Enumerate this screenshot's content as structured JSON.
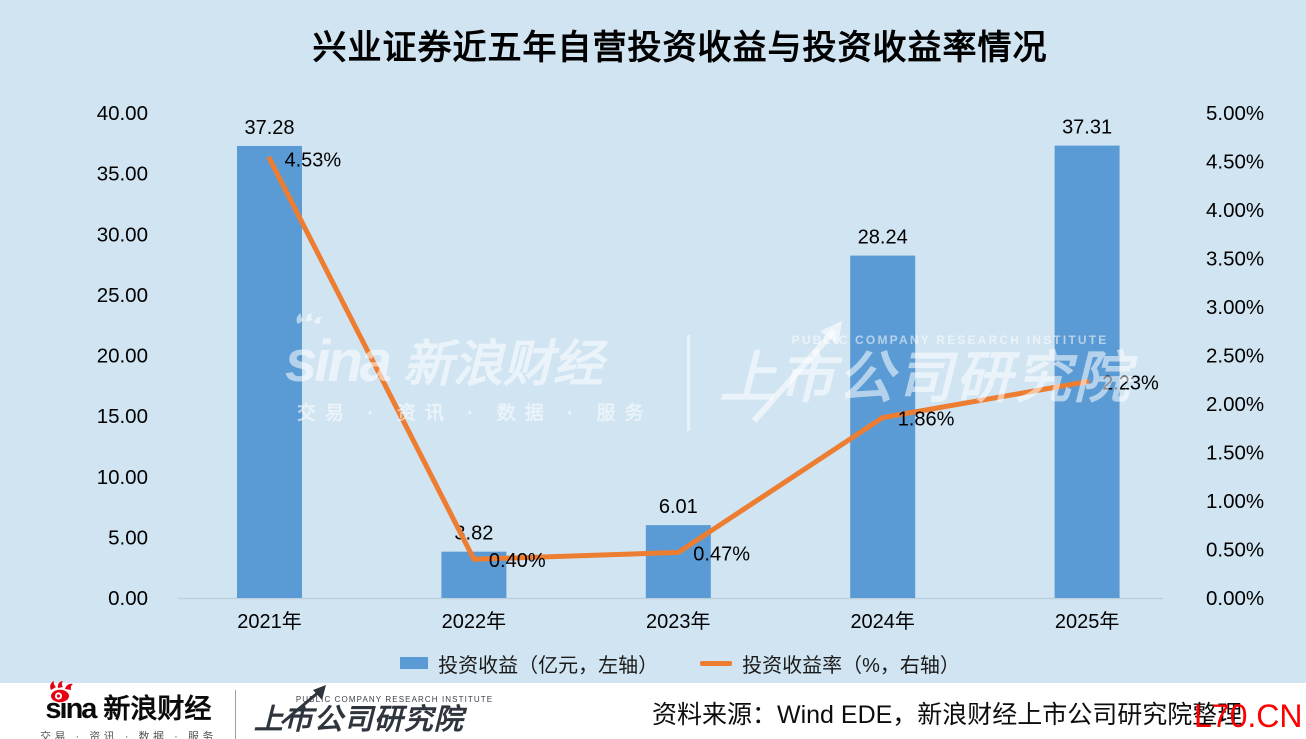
{
  "title": "兴业证券近五年自营投资收益与投资收益率情况",
  "chart_data": {
    "type": "bar",
    "combo": "bar+line",
    "title": "兴业证券近五年自营投资收益与投资收益率情况",
    "categories": [
      "2021年",
      "2022年",
      "2023年",
      "2024年",
      "2025年"
    ],
    "series": [
      {
        "name": "投资收益（亿元，左轴）",
        "type": "bar",
        "axis": "left",
        "color": "#5b9bd5",
        "values": [
          37.28,
          3.82,
          6.01,
          28.24,
          37.31
        ],
        "data_labels": [
          "37.28",
          "3.82",
          "6.01",
          "28.24",
          "37.31"
        ]
      },
      {
        "name": "投资收益率（%，右轴）",
        "type": "line",
        "axis": "right",
        "color": "#ed7d31",
        "values": [
          4.53,
          0.4,
          0.47,
          1.86,
          2.23
        ],
        "data_labels": [
          "4.53%",
          "0.40%",
          "0.47%",
          "1.86%",
          "2.23%"
        ]
      }
    ],
    "left_axis": {
      "min": 0,
      "max": 40,
      "step": 5,
      "tick_labels": [
        "40.00",
        "35.00",
        "30.00",
        "25.00",
        "20.00",
        "15.00",
        "10.00",
        "5.00",
        "0.00"
      ]
    },
    "right_axis": {
      "min": 0,
      "max": 5,
      "step": 0.5,
      "tick_labels": [
        "5.00%",
        "4.50%",
        "4.00%",
        "3.50%",
        "3.00%",
        "2.50%",
        "2.00%",
        "1.50%",
        "1.00%",
        "0.50%",
        "0.00%"
      ]
    },
    "grid": false,
    "legend_position": "bottom"
  },
  "watermark": {
    "sina": "sina",
    "sina_cn": "新浪财经",
    "tagline": "交易 · 资讯 · 数据 · 服务",
    "institute_en": "PUBLIC COMPANY RESEARCH INSTITUTE",
    "institute_cn": "上市公司研究院"
  },
  "footer": {
    "sina": "sina",
    "sina_cn": "新浪财经",
    "tagline": "交易 · 资讯 · 数据 · 服务",
    "institute_en": "PUBLIC COMPANY RESEARCH INSTITUTE",
    "institute_cn": "上市公司研究院",
    "source": "资料来源：Wind EDE，新浪财经上市公司研究院整理",
    "overlay_watermark": "L70.CN"
  },
  "colors": {
    "background": "#d0e4f2",
    "bar": "#5b9bd5",
    "line": "#ed7d31",
    "footer_bg": "#ffffff",
    "overlay_red": "#ff0000",
    "axis_line": "#bccfdd",
    "text": "#000000"
  }
}
